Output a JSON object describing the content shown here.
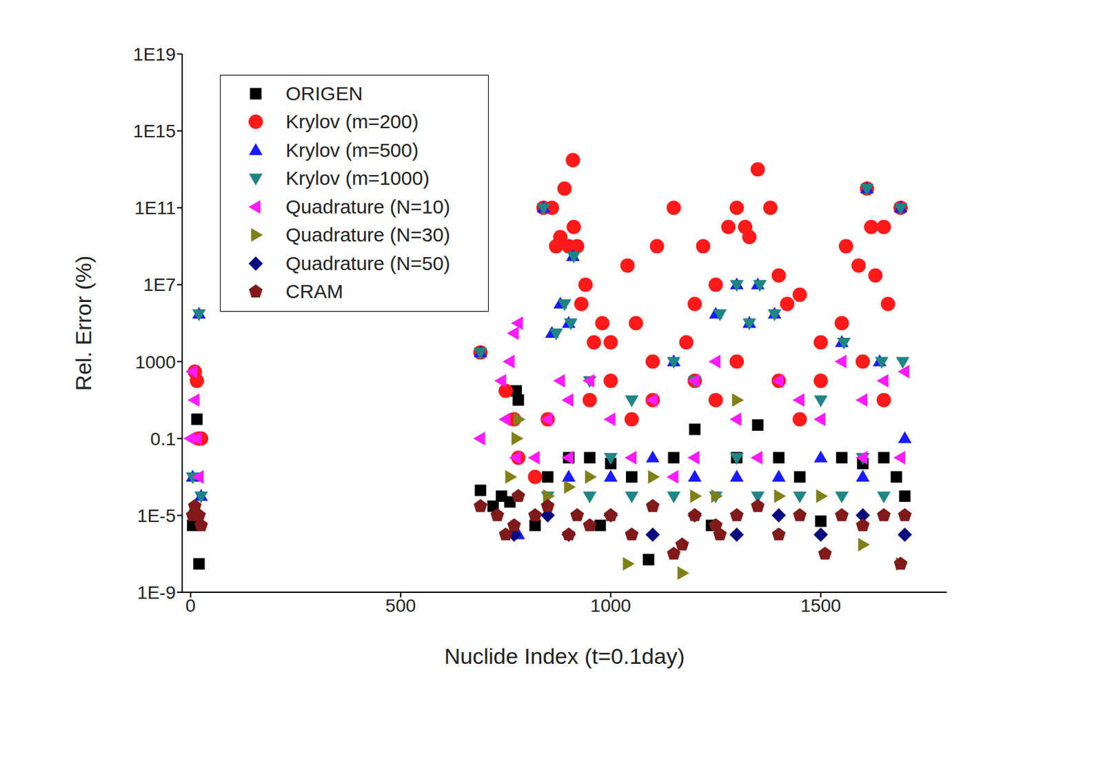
{
  "chart_data": {
    "type": "scatter",
    "x_label": "Nuclide Index (t=0.1day)",
    "y_label": "Rel. Error (%)",
    "log": "y",
    "legend": "upper left",
    "grid": false,
    "xlim": [
      -20,
      1800
    ],
    "xticks": [
      0,
      500,
      1000,
      1500
    ],
    "ylim": [
      1e-09,
      1e+19
    ],
    "yticks": [
      {
        "value": 1e-09,
        "label": "1E-9"
      },
      {
        "value": 1e-05,
        "label": "1E-5"
      },
      0.1,
      1000,
      {
        "value": 10000000.0,
        "label": "1E7"
      },
      {
        "value": 100000000000.0,
        "label": "1E11"
      },
      {
        "value": 1000000000000000.0,
        "label": "1E15"
      },
      {
        "value": 1e+19,
        "label": "1E19"
      }
    ],
    "series": [
      {
        "name": "ORIGEN",
        "color": "#000000",
        "marker": "square",
        "x": [
          5,
          15,
          20,
          10,
          690,
          720,
          740,
          760,
          775,
          780,
          820,
          850,
          900,
          950,
          975,
          1000,
          1050,
          1090,
          1150,
          1200,
          1240,
          1300,
          1350,
          1400,
          1450,
          1500,
          1550,
          1600,
          1650,
          1680,
          1700
        ],
        "values": [
          3e-06,
          1,
          3e-08,
          1e-05,
          0.0002,
          3e-05,
          0.0001,
          5e-05,
          30,
          10,
          3e-06,
          0.001,
          0.01,
          0.01,
          3e-06,
          0.005,
          0.001,
          5e-08,
          0.01,
          0.3,
          3e-06,
          0.01,
          0.5,
          0.01,
          0.001,
          5e-06,
          0.01,
          0.005,
          0.01,
          0.001,
          0.0001
        ]
      },
      {
        "name": "Krylov (m=200)",
        "color": "#ff1a1a",
        "marker": "circle",
        "x": [
          10,
          15,
          20,
          25,
          690,
          750,
          770,
          780,
          820,
          840,
          860,
          870,
          880,
          890,
          900,
          910,
          912,
          920,
          930,
          940,
          960,
          980,
          1000,
          1040,
          1060,
          1100,
          1110,
          1150,
          1180,
          1200,
          1220,
          1250,
          1280,
          1300,
          1320,
          1330,
          1350,
          1380,
          1400,
          1420,
          1450,
          1500,
          1550,
          1560,
          1590,
          1610,
          1620,
          1630,
          1650,
          1660,
          1690,
          1000,
          1100,
          1200,
          1300,
          1400,
          1500,
          1600,
          850,
          950,
          1050,
          1250,
          1450,
          1650
        ],
        "values": [
          300,
          100,
          0.1,
          0.1,
          3000,
          30,
          1,
          0.01,
          0.001,
          100000000000.0,
          100000000000.0,
          1000000000.0,
          3000000000.0,
          1000000000000.0,
          1000000000.0,
          30000000000000.0,
          10000000000.0,
          1000000000.0,
          1000000.0,
          10000000.0,
          10000.0,
          100000.0,
          10000.0,
          100000000.0,
          100000.0,
          1000,
          1000000000.0,
          100000000000.0,
          10000.0,
          1000000.0,
          1000000000.0,
          10000000.0,
          10000000000.0,
          100000000000.0,
          10000000000.0,
          3000000000.0,
          10000000000000.0,
          100000000000.0,
          30000000.0,
          1000000.0,
          3000000.0,
          10000.0,
          100000.0,
          1000000000.0,
          100000000.0,
          1000000000000.0,
          10000000000.0,
          30000000.0,
          10000000000.0,
          1000000.0,
          100000000000.0,
          100,
          10,
          100,
          1000,
          100,
          100,
          1000,
          1,
          10,
          1,
          10,
          1,
          10
        ]
      },
      {
        "name": "Krylov (m=500)",
        "color": "#1a1aff",
        "marker": "triangle-up",
        "x": [
          20,
          5,
          25,
          690,
          780,
          840,
          860,
          880,
          900,
          910,
          1150,
          1250,
          1300,
          1330,
          1350,
          1390,
          1550,
          1610,
          1640,
          1690,
          900,
          1000,
          1100,
          1200,
          1300,
          1400,
          1500,
          1600,
          1700
        ],
        "values": [
          300000.0,
          0.001,
          0.0001,
          3000,
          1e-06,
          100000000000.0,
          30000.0,
          1000000.0,
          100000.0,
          300000000.0,
          1000,
          300000.0,
          10000000.0,
          100000.0,
          10000000.0,
          300000.0,
          10000.0,
          1000000000000.0,
          1000,
          100000000000.0,
          0.001,
          0.001,
          0.01,
          0.001,
          0.001,
          0.001,
          0.01,
          0.001,
          0.1
        ]
      },
      {
        "name": "Krylov (m=1000)",
        "color": "#1f8585",
        "marker": "triangle-down",
        "x": [
          20,
          5,
          25,
          690,
          840,
          870,
          890,
          905,
          912,
          950,
          1050,
          1150,
          1200,
          1260,
          1300,
          1330,
          1355,
          1390,
          1500,
          1555,
          1610,
          1645,
          1690,
          1695,
          850,
          950,
          1050,
          1150,
          1250,
          1350,
          1450,
          1550,
          1650,
          1000,
          1300,
          1600
        ],
        "values": [
          300000.0,
          0.001,
          0.0001,
          3000,
          100000000000.0,
          30000.0,
          1000000.0,
          100000.0,
          300000000.0,
          100,
          10,
          1000,
          100,
          300000.0,
          10000000.0,
          100000.0,
          10000000.0,
          300000.0,
          10,
          10000.0,
          1000000000000.0,
          1000,
          100000000000.0,
          1000,
          0.0001,
          0.0001,
          0.0001,
          0.0001,
          0.0001,
          0.0001,
          0.0001,
          0.0001,
          0.0001,
          0.01,
          0.01,
          0.01
        ]
      },
      {
        "name": "Quadrature (N=10)",
        "color": "#ff1aff",
        "marker": "triangle-left",
        "x": [
          0,
          5,
          10,
          15,
          20,
          690,
          740,
          760,
          770,
          780,
          750,
          775,
          820,
          850,
          880,
          900,
          950,
          1000,
          1050,
          1100,
          1150,
          1200,
          1250,
          1300,
          1350,
          1400,
          1450,
          1500,
          1550,
          1600,
          1650,
          1690,
          1700,
          900,
          1200,
          1600
        ],
        "values": [
          0.1,
          300,
          10,
          0.1,
          0.001,
          0.1,
          100,
          1000,
          30000.0,
          100000.0,
          1,
          0.01,
          0.01,
          1,
          100,
          10,
          100,
          1,
          0.01,
          10,
          0.001,
          100,
          1000,
          1,
          0.01,
          100,
          10,
          1,
          1000,
          10,
          100,
          0.01,
          300,
          0.01,
          0.01,
          0.01
        ]
      },
      {
        "name": "Quadrature (N=30)",
        "color": "#808019",
        "marker": "triangle-right",
        "x": [
          780,
          775,
          760,
          850,
          900,
          1040,
          1100,
          1170,
          1250,
          1300,
          1400,
          1500,
          1600,
          1690,
          950,
          1200
        ],
        "values": [
          1,
          0.1,
          0.001,
          0.0001,
          0.0003,
          3e-08,
          0.001,
          1e-08,
          0.0001,
          10,
          0.0001,
          0.0001,
          3e-07,
          3e-08,
          0.001,
          0.0001
        ]
      },
      {
        "name": "Quadrature (N=50)",
        "color": "#0a0a80",
        "marker": "diamond",
        "x": [
          15,
          770,
          850,
          900,
          1000,
          1100,
          1200,
          1300,
          1400,
          1500,
          1600,
          1700
        ],
        "values": [
          1e-05,
          1e-06,
          1e-05,
          1e-06,
          1e-05,
          1e-06,
          1e-05,
          1e-06,
          1e-05,
          1e-06,
          1e-05,
          1e-06
        ]
      },
      {
        "name": "CRAM",
        "color": "#801a1a",
        "marker": "pentagon",
        "x": [
          5,
          10,
          20,
          25,
          690,
          730,
          750,
          770,
          780,
          820,
          850,
          900,
          920,
          950,
          1000,
          1050,
          1100,
          1150,
          1170,
          1200,
          1250,
          1260,
          1300,
          1350,
          1400,
          1450,
          1510,
          1550,
          1600,
          1650,
          1690,
          1700
        ],
        "values": [
          1e-05,
          3e-05,
          1e-05,
          3e-06,
          3e-05,
          1e-05,
          1e-06,
          3e-06,
          0.0001,
          1e-05,
          3e-05,
          1e-06,
          1e-05,
          3e-06,
          1e-05,
          1e-06,
          3e-05,
          1e-07,
          3e-07,
          1e-05,
          3e-06,
          1e-06,
          1e-05,
          3e-05,
          1e-06,
          1e-05,
          1e-07,
          1e-05,
          3e-06,
          1e-05,
          3e-08,
          1e-05
        ]
      }
    ]
  }
}
